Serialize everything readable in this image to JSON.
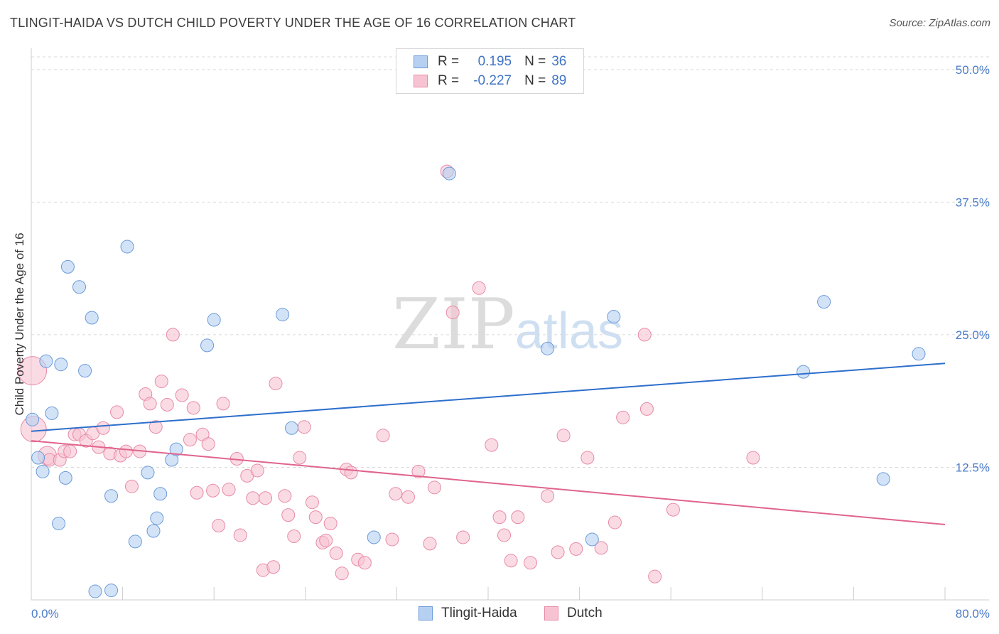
{
  "title": "TLINGIT-HAIDA VS DUTCH CHILD POVERTY UNDER THE AGE OF 16 CORRELATION CHART",
  "source": "Source: ZipAtlas.com",
  "watermark": {
    "zip": "ZIP",
    "atlas": "atlas"
  },
  "legend": {
    "rows": [
      {
        "r_label": "R =",
        "r_value": "0.195",
        "n_label": "N =",
        "n_value": "36"
      },
      {
        "r_label": "R =",
        "r_value": "-0.227",
        "n_label": "N =",
        "n_value": "89"
      }
    ]
  },
  "colors": {
    "tlingit_fill": "#b6d0f2",
    "tlingit_stroke": "#6a9ad8",
    "tlingit_line": "#2d6fcc",
    "dutch_fill": "#f7c3d2",
    "dutch_stroke": "#e88aa7",
    "dutch_line": "#e0648d",
    "grid": "#d9d9d9",
    "tick_label": "#4a7cc9"
  },
  "chart_data": {
    "type": "scatter",
    "title": "TLINGIT-HAIDA VS DUTCH CHILD POVERTY UNDER THE AGE OF 16 CORRELATION CHART",
    "xlabel": "",
    "ylabel": "Child Poverty Under the Age of 16",
    "xlim": [
      0,
      80
    ],
    "ylim": [
      0,
      52
    ],
    "x_tick_labels": [
      "0.0%",
      "80.0%"
    ],
    "y_ticks": [
      {
        "value": 12.5,
        "label": "12.5%"
      },
      {
        "value": 25.0,
        "label": "25.0%"
      },
      {
        "value": 37.5,
        "label": "37.5%"
      },
      {
        "value": 50.0,
        "label": "50.0%"
      }
    ],
    "grid": true,
    "legend_position": "bottom",
    "series": [
      {
        "name": "Tlingit-Haida",
        "color": "#6a9ad8",
        "trend": {
          "x": [
            0,
            80
          ],
          "y": [
            15.9,
            22.3
          ]
        },
        "points": [
          [
            0.1,
            17.0
          ],
          [
            0.6,
            13.4
          ],
          [
            1.0,
            12.1
          ],
          [
            1.3,
            22.5
          ],
          [
            1.8,
            17.6
          ],
          [
            2.4,
            7.2
          ],
          [
            2.6,
            22.2
          ],
          [
            3.0,
            11.5
          ],
          [
            3.2,
            31.4
          ],
          [
            4.2,
            29.5
          ],
          [
            4.7,
            21.6
          ],
          [
            5.3,
            26.6
          ],
          [
            5.6,
            0.8
          ],
          [
            7.0,
            0.9
          ],
          [
            7.0,
            9.8
          ],
          [
            8.4,
            33.3
          ],
          [
            9.1,
            5.5
          ],
          [
            10.2,
            12.0
          ],
          [
            10.7,
            6.5
          ],
          [
            11.0,
            7.7
          ],
          [
            11.3,
            10.0
          ],
          [
            12.3,
            13.2
          ],
          [
            12.7,
            14.2
          ],
          [
            15.4,
            24.0
          ],
          [
            16.0,
            26.4
          ],
          [
            22.0,
            26.9
          ],
          [
            22.8,
            16.2
          ],
          [
            30.0,
            5.9
          ],
          [
            36.6,
            40.2
          ],
          [
            45.2,
            23.7
          ],
          [
            49.1,
            5.7
          ],
          [
            51.0,
            26.7
          ],
          [
            67.6,
            21.5
          ],
          [
            69.4,
            28.1
          ],
          [
            74.6,
            11.4
          ],
          [
            77.7,
            23.2
          ]
        ]
      },
      {
        "name": "Dutch",
        "color": "#e88aa7",
        "trend": {
          "x": [
            0,
            80
          ],
          "y": [
            15.0,
            7.1
          ]
        },
        "points": [
          [
            0.1,
            21.6
          ],
          [
            0.2,
            16.1
          ],
          [
            1.4,
            13.6
          ],
          [
            1.6,
            13.2
          ],
          [
            2.5,
            13.2
          ],
          [
            2.9,
            14.0
          ],
          [
            3.4,
            14.0
          ],
          [
            3.8,
            15.6
          ],
          [
            4.2,
            15.6
          ],
          [
            4.8,
            15.0
          ],
          [
            5.4,
            15.7
          ],
          [
            5.9,
            14.4
          ],
          [
            6.3,
            16.2
          ],
          [
            6.9,
            13.8
          ],
          [
            7.5,
            17.7
          ],
          [
            7.8,
            13.6
          ],
          [
            8.3,
            14.0
          ],
          [
            8.8,
            10.7
          ],
          [
            9.5,
            14.0
          ],
          [
            10.0,
            19.4
          ],
          [
            10.4,
            18.5
          ],
          [
            10.9,
            16.3
          ],
          [
            11.4,
            20.6
          ],
          [
            11.9,
            18.4
          ],
          [
            12.4,
            25.0
          ],
          [
            13.2,
            19.3
          ],
          [
            13.9,
            15.1
          ],
          [
            14.2,
            18.1
          ],
          [
            14.5,
            10.1
          ],
          [
            15.0,
            15.6
          ],
          [
            15.5,
            14.7
          ],
          [
            15.9,
            10.3
          ],
          [
            16.4,
            7.0
          ],
          [
            16.8,
            18.5
          ],
          [
            17.3,
            10.4
          ],
          [
            18.0,
            13.3
          ],
          [
            18.3,
            6.1
          ],
          [
            18.9,
            11.7
          ],
          [
            19.4,
            9.6
          ],
          [
            19.8,
            12.2
          ],
          [
            20.3,
            2.8
          ],
          [
            20.5,
            9.6
          ],
          [
            21.2,
            3.1
          ],
          [
            21.4,
            20.4
          ],
          [
            22.2,
            9.8
          ],
          [
            22.5,
            8.0
          ],
          [
            23.0,
            6.0
          ],
          [
            23.5,
            13.4
          ],
          [
            23.9,
            16.3
          ],
          [
            24.6,
            9.2
          ],
          [
            24.9,
            7.8
          ],
          [
            25.5,
            5.4
          ],
          [
            25.8,
            5.6
          ],
          [
            26.2,
            7.2
          ],
          [
            26.7,
            4.4
          ],
          [
            27.2,
            2.5
          ],
          [
            27.6,
            12.3
          ],
          [
            28.0,
            12.0
          ],
          [
            28.6,
            3.8
          ],
          [
            29.2,
            3.5
          ],
          [
            30.8,
            15.5
          ],
          [
            31.6,
            5.7
          ],
          [
            31.9,
            10.0
          ],
          [
            33.0,
            9.7
          ],
          [
            33.9,
            12.1
          ],
          [
            34.9,
            5.3
          ],
          [
            35.3,
            10.6
          ],
          [
            36.4,
            40.4
          ],
          [
            36.9,
            27.1
          ],
          [
            37.8,
            5.9
          ],
          [
            39.2,
            29.4
          ],
          [
            40.3,
            14.6
          ],
          [
            41.0,
            7.8
          ],
          [
            41.4,
            6.1
          ],
          [
            42.0,
            3.7
          ],
          [
            42.6,
            7.8
          ],
          [
            43.7,
            3.5
          ],
          [
            45.2,
            9.8
          ],
          [
            46.1,
            4.5
          ],
          [
            46.6,
            15.5
          ],
          [
            47.7,
            4.8
          ],
          [
            48.7,
            13.4
          ],
          [
            49.9,
            4.9
          ],
          [
            51.1,
            7.3
          ],
          [
            51.8,
            17.2
          ],
          [
            53.7,
            25.0
          ],
          [
            53.9,
            18.0
          ],
          [
            54.6,
            2.2
          ],
          [
            56.2,
            8.5
          ],
          [
            63.2,
            13.4
          ]
        ]
      }
    ]
  }
}
